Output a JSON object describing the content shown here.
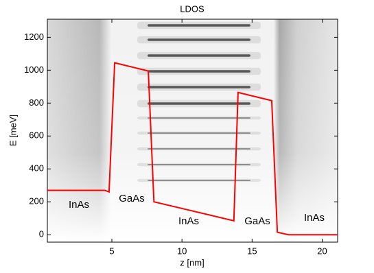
{
  "chart_data": {
    "type": "line",
    "title": "LDOS",
    "xlabel": "z [nm]",
    "ylabel": "E [meV]",
    "x": [
      0.4,
      4.5,
      4.8,
      5.2,
      7.6,
      8.0,
      13.7,
      14.0,
      16.4,
      16.8,
      17.6,
      21.1
    ],
    "series": [
      {
        "color": "#ff0000",
        "values": [
          270,
          270,
          260,
          1045,
          995,
          200,
          85,
          865,
          815,
          15,
          0,
          0
        ]
      }
    ],
    "xlim": [
      0.4,
      21.1
    ],
    "ylim": [
      -45,
      1310
    ],
    "xticks": [
      5,
      10,
      15,
      20
    ],
    "yticks": [
      0,
      200,
      400,
      600,
      800,
      1000,
      1200
    ],
    "annotations": [
      "InAs",
      "GaAs",
      "InAs",
      "GaAs",
      "InAs"
    ]
  }
}
